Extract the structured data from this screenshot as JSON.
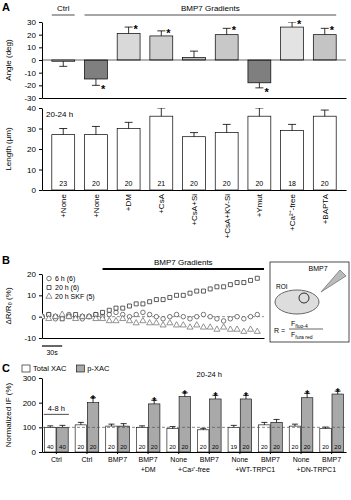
{
  "chart_data": [
    {
      "type": "bar",
      "panel": "A",
      "y_label": "Angle (deg)",
      "categories": [
        null,
        null,
        null,
        null,
        null,
        null,
        null,
        null,
        null
      ],
      "values": [
        -1,
        -15,
        21,
        19,
        2,
        20,
        -18,
        26,
        20
      ],
      "errors": [
        4,
        5,
        5,
        4,
        5,
        5,
        4,
        4,
        5
      ],
      "value_notes": [
        null,
        "*",
        "*",
        "*",
        null,
        "*",
        "*",
        "*",
        "*"
      ],
      "colors": [
        "#ffffff",
        "#7f7f7f",
        "#d9d9d9",
        "#cfcfcf",
        "#bdbdbd",
        "#c8c8c8",
        "#7f7f7f",
        "#e3e3e3",
        "#c4c4c4"
      ],
      "ylim": [
        -30,
        30
      ],
      "yticks": [
        -30,
        -20,
        -10,
        0,
        10,
        20,
        30
      ],
      "ref_line": 0,
      "header_groups": [
        {
          "label": "Ctrl",
          "start": 0,
          "end": 0
        },
        {
          "label": "BMP7 Gradients",
          "start": 1,
          "end": 8
        }
      ]
    },
    {
      "type": "bar",
      "y_label": "Length (μm)",
      "annotation": "20-24 h",
      "categories": [
        "+None",
        "+None",
        "+DM",
        "+CsA",
        "+CsA+Si",
        "+CsA+KV-Si",
        "+Ymut",
        "+Ca²⁺-free",
        "+BAPTA"
      ],
      "values": [
        27,
        27,
        30,
        36,
        26,
        28,
        36,
        29,
        36
      ],
      "errors": [
        3,
        4,
        3,
        4,
        2,
        4,
        4,
        3,
        3
      ],
      "n": [
        23,
        20,
        20,
        21,
        20,
        20,
        20,
        18,
        20
      ],
      "color": "#ffffff",
      "ylim": [
        0,
        40
      ],
      "yticks": [
        0,
        10,
        20,
        30,
        40
      ]
    },
    {
      "type": "line",
      "panel": "B",
      "y_label": "ΔR/R₀ (%)",
      "x": [
        0,
        10,
        20,
        30,
        40,
        50,
        60,
        70,
        80,
        90,
        100,
        110,
        120,
        130,
        140,
        150,
        160,
        170,
        180,
        190,
        200,
        210,
        220,
        230,
        240,
        250,
        260,
        270,
        280,
        290,
        300,
        310,
        320
      ],
      "xlim": [
        0,
        330
      ],
      "ylim": [
        -10,
        20
      ],
      "yticks": [
        -10,
        0,
        10,
        20
      ],
      "tick_labels": "y",
      "legend": "top-left",
      "ref_line": 0,
      "series": [
        {
          "name": "6 h (6)",
          "color": "#555555",
          "marker": "circle",
          "line_style": "none",
          "values": [
            0,
            1,
            -1,
            0,
            1,
            0,
            -1,
            0,
            1,
            0,
            1,
            2,
            1,
            0,
            1,
            2,
            1,
            0,
            -1,
            0,
            1,
            0,
            -1,
            0,
            1,
            0,
            -1,
            -2,
            -1,
            0,
            -1,
            0,
            1
          ]
        },
        {
          "name": "20 h (6)",
          "color": "#333333",
          "marker": "square",
          "line_style": "none",
          "values": [
            0,
            1,
            0,
            -1,
            0,
            1,
            0,
            0,
            1,
            2,
            3,
            4,
            4,
            5,
            6,
            6,
            7,
            8,
            8,
            9,
            10,
            10,
            11,
            12,
            12,
            13,
            14,
            14,
            15,
            16,
            16,
            17,
            18
          ]
        },
        {
          "name": "20 h SKF (5)",
          "color": "#777777",
          "marker": "triangle",
          "line_style": "none",
          "values": [
            0,
            -1,
            0,
            1,
            0,
            -1,
            0,
            0,
            -1,
            -1,
            -2,
            -2,
            -1,
            -2,
            -3,
            -2,
            -3,
            -3,
            -4,
            -3,
            -4,
            -4,
            -5,
            -4,
            -5,
            -5,
            -6,
            -5,
            -6,
            -6,
            -7,
            -6,
            -7
          ]
        }
      ],
      "gradient_bar": {
        "label": "BMP7 Gradients",
        "start": 90,
        "end": 330
      },
      "scale_bar": {
        "value": 30,
        "label": "30s"
      },
      "inset": {
        "source": "BMP7",
        "region": "ROI",
        "formula_lhs": "R =",
        "numerator": "F",
        "numerator_sub": "fluo-4",
        "denominator": "F",
        "denominator_sub": "fura red"
      }
    },
    {
      "type": "bar",
      "panel": "C",
      "y_label": "Normalized IF (%)",
      "categories": [
        "Ctrl",
        "Ctrl",
        "BMP7",
        "BMP7",
        "None",
        "BMP7",
        "None",
        "BMP7",
        "None",
        "BMP7"
      ],
      "series": [
        {
          "name": "Total XAC",
          "color": "#ffffff",
          "values": [
            100,
            110,
            105,
            100,
            95,
            90,
            100,
            110,
            105,
            95
          ],
          "errors": [
            6,
            10,
            8,
            6,
            8,
            6,
            8,
            10,
            8,
            6
          ],
          "n": [
            40,
            20,
            20,
            20,
            20,
            20,
            19,
            20,
            20,
            20
          ]
        },
        {
          "name": "p-XAC",
          "color": "#a9a9a9",
          "values": [
            100,
            200,
            105,
            195,
            225,
            215,
            215,
            120,
            220,
            235
          ],
          "errors": [
            8,
            20,
            10,
            15,
            15,
            15,
            15,
            12,
            18,
            12
          ],
          "n": [
            40,
            20,
            20,
            20,
            20,
            20,
            20,
            20,
            20,
            20
          ],
          "value_notes": [
            null,
            "*",
            null,
            "*",
            "*",
            "*",
            "*",
            null,
            "*",
            "*"
          ]
        }
      ],
      "ylim": [
        0,
        300
      ],
      "yticks": [
        0,
        100,
        200,
        300
      ],
      "legend": "top-left",
      "ref_line": 100,
      "header_groups": [
        {
          "label": "4-8 h",
          "start": 0,
          "end": 0
        },
        {
          "label": "20-24 h",
          "start": 1,
          "end": 9
        }
      ],
      "category_groups": [
        {
          "label": "+DM",
          "start": 3,
          "end": 3
        },
        {
          "label": "+Ca²⁺-free",
          "start": 4,
          "end": 5
        },
        {
          "label": "+WT-TRPC1",
          "start": 6,
          "end": 7
        },
        {
          "label": "+DN-TRPC1",
          "start": 8,
          "end": 9
        }
      ]
    }
  ]
}
